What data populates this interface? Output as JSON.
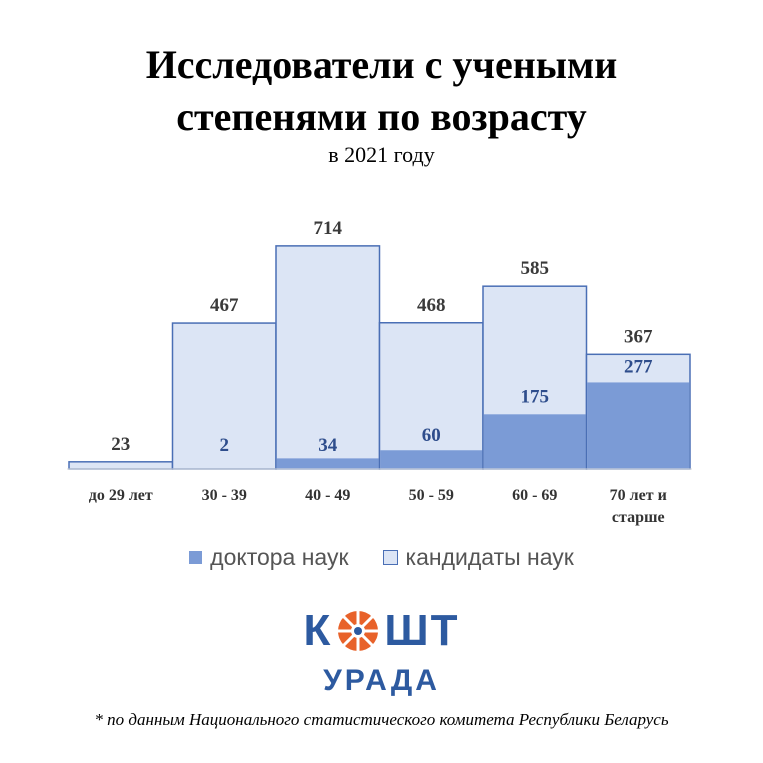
{
  "chart_data": {
    "type": "bar",
    "title_lines": [
      "Исследователи с учеными",
      "степенями по возрасту"
    ],
    "subtitle": "в 2021 году",
    "categories": [
      [
        "до 29 лет"
      ],
      [
        "30 - 39"
      ],
      [
        "40 - 49"
      ],
      [
        "50 - 59"
      ],
      [
        "60 - 69"
      ],
      [
        "70 лет и",
        "старше"
      ]
    ],
    "series": [
      {
        "name": "доктора  наук",
        "values": [
          0,
          2,
          34,
          60,
          175,
          277
        ],
        "labels": [
          "",
          "2",
          "34",
          "60",
          "175",
          "277"
        ],
        "color": "#7b9bd6"
      },
      {
        "name": "кандидаты  наук",
        "values": [
          23,
          467,
          714,
          468,
          585,
          367
        ],
        "labels": [
          "23",
          "467",
          "714",
          "468",
          "585",
          "367"
        ],
        "color": "#dce5f5"
      }
    ],
    "ylim": [
      0,
      720
    ],
    "border_color": "#4a6fb5",
    "label_color_outer": "#3a3a3a",
    "label_color_inner": "#2e4d8c",
    "grid": false,
    "legend_position": "bottom"
  },
  "logo": {
    "word_left": "К",
    "word_right": "ШТ",
    "sub": "УРАДА",
    "accent": "#e8622a",
    "brand": "#2d5aa0"
  },
  "footnote": "* по данным Национального статистического комитета Республики Беларусь"
}
